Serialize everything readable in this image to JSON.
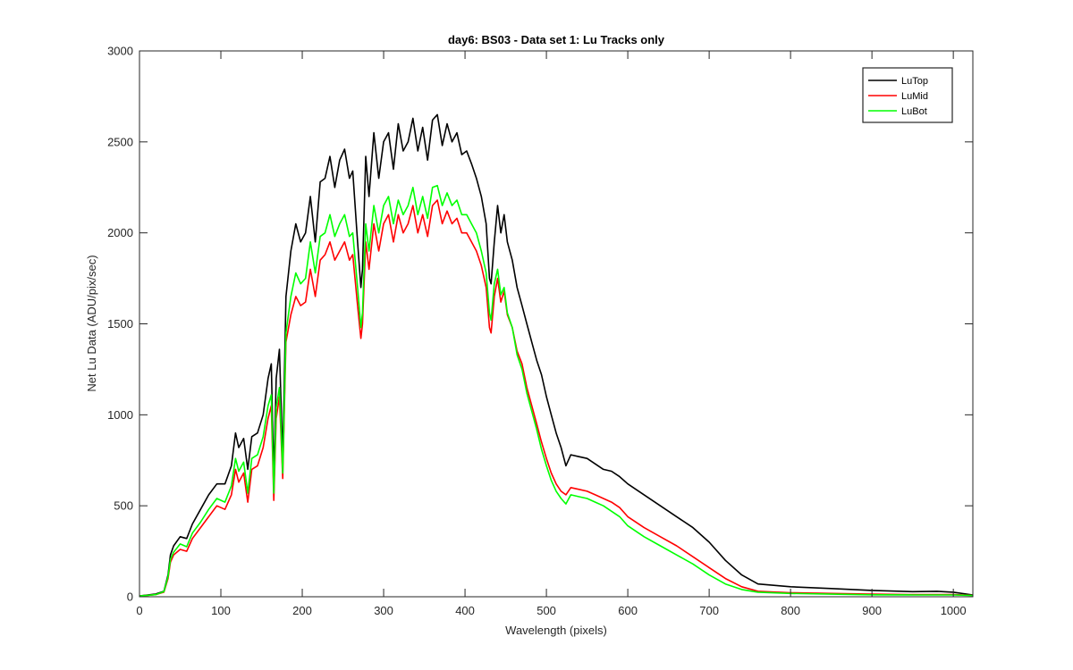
{
  "chart_data": {
    "type": "line",
    "title": "day6: BS03 - Data set 1: Lu Tracks only",
    "xlabel": "Wavelength (pixels)",
    "ylabel": "Net Lu Data (ADU/pix/sec)",
    "xlim": [
      0,
      1024
    ],
    "ylim": [
      0,
      3000
    ],
    "xticks": [
      0,
      100,
      200,
      300,
      400,
      500,
      600,
      700,
      800,
      900,
      1000
    ],
    "yticks": [
      0,
      500,
      1000,
      1500,
      2000,
      2500,
      3000
    ],
    "grid": false,
    "legend_position": "top-right",
    "series": [
      {
        "name": "LuTop",
        "color": "#000000",
        "x": [
          0,
          10,
          20,
          30,
          35,
          38,
          42,
          50,
          58,
          65,
          75,
          85,
          95,
          105,
          113,
          118,
          122,
          128,
          133,
          138,
          145,
          152,
          158,
          162,
          165,
          168,
          172,
          176,
          180,
          186,
          192,
          198,
          204,
          210,
          216,
          222,
          228,
          234,
          240,
          246,
          252,
          258,
          262,
          268,
          272,
          274,
          278,
          282,
          288,
          294,
          300,
          306,
          312,
          318,
          324,
          330,
          336,
          342,
          348,
          354,
          360,
          366,
          372,
          378,
          384,
          390,
          396,
          402,
          408,
          414,
          420,
          426,
          430,
          432,
          436,
          440,
          444,
          448,
          452,
          458,
          464,
          470,
          476,
          482,
          488,
          494,
          500,
          506,
          512,
          518,
          524,
          530,
          540,
          550,
          560,
          570,
          580,
          590,
          600,
          620,
          640,
          660,
          680,
          700,
          720,
          740,
          760,
          800,
          850,
          900,
          950,
          980,
          1000,
          1024
        ],
        "y": [
          5,
          10,
          15,
          30,
          120,
          230,
          280,
          330,
          320,
          400,
          480,
          560,
          620,
          620,
          720,
          900,
          820,
          870,
          700,
          880,
          900,
          1000,
          1200,
          1280,
          650,
          1200,
          1360,
          750,
          1650,
          1900,
          2050,
          1950,
          2000,
          2200,
          1950,
          2280,
          2300,
          2420,
          2250,
          2400,
          2460,
          2300,
          2340,
          1950,
          1700,
          1800,
          2420,
          2200,
          2550,
          2300,
          2500,
          2550,
          2350,
          2600,
          2450,
          2500,
          2630,
          2450,
          2580,
          2400,
          2620,
          2650,
          2480,
          2600,
          2500,
          2550,
          2430,
          2450,
          2380,
          2300,
          2200,
          2050,
          1750,
          1720,
          1950,
          2150,
          2000,
          2100,
          1950,
          1850,
          1700,
          1600,
          1500,
          1400,
          1300,
          1220,
          1100,
          1000,
          900,
          820,
          720,
          780,
          770,
          760,
          730,
          700,
          690,
          660,
          620,
          560,
          500,
          440,
          380,
          300,
          200,
          120,
          70,
          55,
          45,
          35,
          28,
          30,
          25,
          10
        ]
      },
      {
        "name": "LuMid",
        "color": "#ff0000",
        "x": [
          0,
          10,
          20,
          30,
          35,
          38,
          42,
          50,
          58,
          65,
          75,
          85,
          95,
          105,
          113,
          118,
          122,
          128,
          133,
          138,
          145,
          152,
          158,
          162,
          165,
          168,
          172,
          176,
          180,
          186,
          192,
          198,
          204,
          210,
          216,
          222,
          228,
          234,
          240,
          246,
          252,
          258,
          262,
          268,
          272,
          274,
          278,
          282,
          288,
          294,
          300,
          306,
          312,
          318,
          324,
          330,
          336,
          342,
          348,
          354,
          360,
          366,
          372,
          378,
          384,
          390,
          396,
          402,
          408,
          414,
          420,
          426,
          430,
          432,
          436,
          440,
          444,
          448,
          452,
          458,
          464,
          470,
          476,
          482,
          488,
          494,
          500,
          506,
          512,
          518,
          524,
          530,
          540,
          550,
          560,
          570,
          580,
          590,
          600,
          620,
          640,
          660,
          680,
          700,
          720,
          740,
          760,
          800,
          850,
          900,
          950,
          980,
          1000,
          1024
        ],
        "y": [
          5,
          8,
          12,
          25,
          100,
          190,
          230,
          260,
          250,
          320,
          380,
          440,
          500,
          480,
          560,
          700,
          630,
          680,
          520,
          700,
          720,
          820,
          980,
          1050,
          530,
          980,
          1100,
          650,
          1400,
          1550,
          1650,
          1600,
          1620,
          1800,
          1650,
          1850,
          1880,
          1950,
          1850,
          1900,
          1950,
          1850,
          1880,
          1600,
          1420,
          1500,
          1950,
          1800,
          2050,
          1900,
          2050,
          2100,
          1950,
          2100,
          2000,
          2050,
          2150,
          2000,
          2100,
          1980,
          2150,
          2180,
          2050,
          2120,
          2050,
          2080,
          2000,
          2000,
          1950,
          1900,
          1820,
          1700,
          1480,
          1450,
          1650,
          1750,
          1620,
          1680,
          1550,
          1480,
          1350,
          1280,
          1150,
          1050,
          950,
          850,
          760,
          680,
          620,
          580,
          560,
          600,
          590,
          580,
          560,
          540,
          520,
          490,
          440,
          380,
          330,
          280,
          220,
          160,
          100,
          55,
          30,
          22,
          18,
          14,
          12,
          12,
          12,
          8
        ]
      },
      {
        "name": "LuBot",
        "color": "#00ff00",
        "x": [
          0,
          10,
          20,
          30,
          35,
          38,
          42,
          50,
          58,
          65,
          75,
          85,
          95,
          105,
          113,
          118,
          122,
          128,
          133,
          138,
          145,
          152,
          158,
          162,
          165,
          168,
          172,
          176,
          180,
          186,
          192,
          198,
          204,
          210,
          216,
          222,
          228,
          234,
          240,
          246,
          252,
          258,
          262,
          268,
          272,
          274,
          278,
          282,
          288,
          294,
          300,
          306,
          312,
          318,
          324,
          330,
          336,
          342,
          348,
          354,
          360,
          366,
          372,
          378,
          384,
          390,
          396,
          402,
          408,
          414,
          420,
          426,
          430,
          432,
          436,
          440,
          444,
          448,
          452,
          458,
          464,
          470,
          476,
          482,
          488,
          494,
          500,
          506,
          512,
          518,
          524,
          530,
          540,
          550,
          560,
          570,
          580,
          590,
          600,
          620,
          640,
          660,
          680,
          700,
          720,
          740,
          760,
          800,
          850,
          900,
          950,
          980,
          1000,
          1024
        ],
        "y": [
          5,
          8,
          12,
          28,
          110,
          205,
          245,
          290,
          275,
          350,
          410,
          480,
          540,
          520,
          610,
          760,
          690,
          740,
          570,
          760,
          780,
          880,
          1050,
          1110,
          570,
          1040,
          1150,
          680,
          1450,
          1650,
          1780,
          1720,
          1750,
          1950,
          1780,
          1980,
          2000,
          2100,
          1980,
          2050,
          2100,
          1980,
          2000,
          1700,
          1480,
          1560,
          2050,
          1900,
          2150,
          2000,
          2150,
          2200,
          2050,
          2180,
          2100,
          2150,
          2250,
          2100,
          2200,
          2080,
          2250,
          2260,
          2150,
          2220,
          2150,
          2180,
          2100,
          2100,
          2050,
          2000,
          1900,
          1780,
          1560,
          1520,
          1720,
          1800,
          1660,
          1700,
          1560,
          1480,
          1330,
          1250,
          1120,
          1020,
          920,
          810,
          720,
          640,
          580,
          540,
          510,
          560,
          550,
          540,
          520,
          500,
          470,
          440,
          390,
          330,
          280,
          230,
          180,
          120,
          70,
          40,
          25,
          18,
          14,
          11,
          10,
          10,
          10,
          7
        ]
      }
    ]
  }
}
